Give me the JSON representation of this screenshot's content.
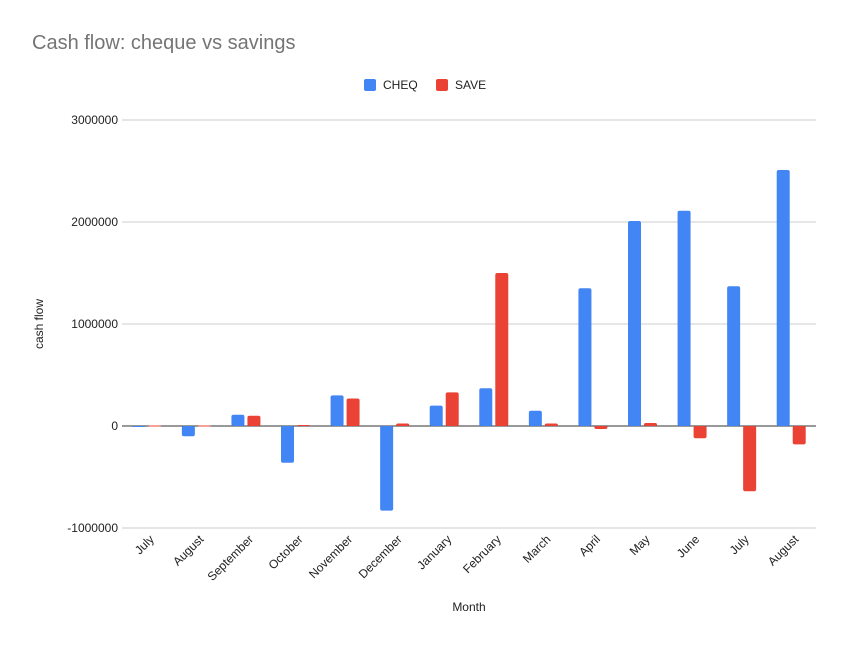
{
  "chart_data": {
    "type": "bar",
    "title": "Cash flow: cheque vs savings",
    "xlabel": "Month",
    "ylabel": "cash flow",
    "ylim": [
      -1000000,
      3000000
    ],
    "yticks": [
      -1000000,
      0,
      1000000,
      2000000,
      3000000
    ],
    "ytick_labels": [
      "-1000000",
      "0",
      "1000000",
      "2000000",
      "3000000"
    ],
    "grid": true,
    "legend_position": "top",
    "categories": [
      "July",
      "August",
      "September",
      "October",
      "November",
      "December",
      "January",
      "February",
      "March",
      "April",
      "May",
      "June",
      "July",
      "August"
    ],
    "series": [
      {
        "name": "CHEQ",
        "color": "#4285f4",
        "values": [
          -10000,
          -100000,
          110000,
          -360000,
          300000,
          -830000,
          200000,
          370000,
          150000,
          1350000,
          2010000,
          2110000,
          1370000,
          2510000
        ]
      },
      {
        "name": "SAVE",
        "color": "#ea4335",
        "values": [
          5000,
          5000,
          100000,
          10000,
          270000,
          25000,
          330000,
          1500000,
          25000,
          -30000,
          30000,
          -120000,
          -640000,
          -180000
        ]
      }
    ]
  }
}
